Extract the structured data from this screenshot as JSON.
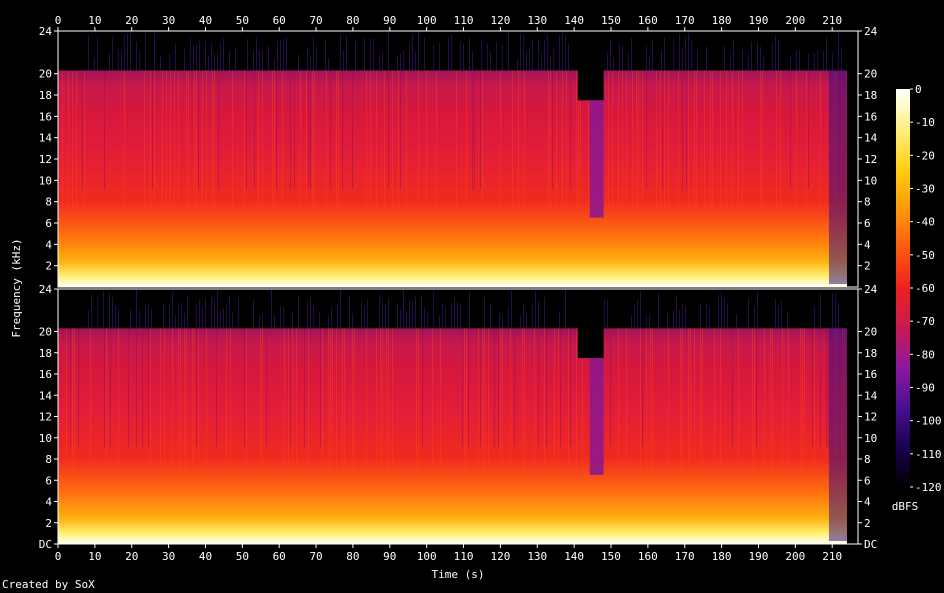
{
  "chart_data": {
    "type": "heatmap",
    "subtype": "spectrogram",
    "xlabel": "Time (s)",
    "ylabel": "Frequency (kHz)",
    "x_ticks": [
      0,
      10,
      20,
      30,
      40,
      50,
      60,
      70,
      80,
      90,
      100,
      110,
      120,
      130,
      140,
      150,
      160,
      170,
      180,
      190,
      200,
      210
    ],
    "xlim": [
      0,
      217
    ],
    "y_ticks_top": [
      "2",
      "4",
      "6",
      "8",
      "10",
      "12",
      "14",
      "16",
      "18",
      "20",
      "24"
    ],
    "y_tick_values_top": [
      2,
      4,
      6,
      8,
      10,
      12,
      14,
      16,
      18,
      20,
      24
    ],
    "y_ticks_bottom": [
      "DC",
      "2",
      "4",
      "6",
      "8",
      "10",
      "12",
      "14",
      "16",
      "18",
      "20",
      "24"
    ],
    "y_tick_values_bottom": [
      0,
      2,
      4,
      6,
      8,
      10,
      12,
      14,
      16,
      18,
      20,
      24
    ],
    "ylim": [
      0,
      24
    ],
    "channels": 2,
    "signal_end_s": 214,
    "cutoff_khz": 20.3,
    "notch": {
      "start_s": 141,
      "end_s": 148,
      "top_khz": 17.5
    },
    "colorbar": {
      "label": "dBFS",
      "ticks": [
        0,
        -10,
        -20,
        -30,
        -40,
        -50,
        -60,
        -70,
        -80,
        -90,
        -100,
        -110,
        -120
      ],
      "range": [
        -120,
        0
      ],
      "colors": [
        "#000000",
        "#1a0050",
        "#4a1090",
        "#8a18a0",
        "#c81a50",
        "#ee2020",
        "#ff5a10",
        "#ff9a08",
        "#ffd010",
        "#fff080",
        "#ffffff"
      ]
    }
  },
  "footer": "Created by SoX"
}
